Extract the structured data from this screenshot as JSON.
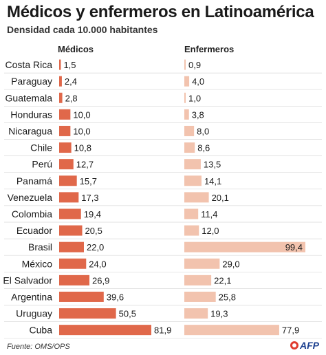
{
  "header": {
    "title": "Médicos y enfermeros en Latinoamérica",
    "subtitle": "Densidad cada 10.000 habitantes"
  },
  "footer": {
    "source": "Fuente: OMS/OPS",
    "logo_text": "AFP"
  },
  "colors": {
    "medicos_bar": "#e0684a",
    "enfermeros_bar": "#f2c3ae"
  },
  "chart_data": {
    "type": "bar",
    "orientation": "horizontal",
    "categories": [
      "Costa Rica",
      "Paraguay",
      "Guatemala",
      "Honduras",
      "Nicaragua",
      "Chile",
      "Perú",
      "Panamá",
      "Venezuela",
      "Colombia",
      "Ecuador",
      "Brasil",
      "México",
      "El Salvador",
      "Argentina",
      "Uruguay",
      "Cuba"
    ],
    "series": [
      {
        "name": "Médicos",
        "values": [
          1.5,
          2.4,
          2.8,
          10.0,
          10.0,
          10.8,
          12.7,
          15.7,
          17.3,
          19.4,
          20.5,
          22.0,
          24.0,
          26.9,
          39.6,
          50.5,
          81.9
        ],
        "labels": [
          "1,5",
          "2,4",
          "2,8",
          "10,0",
          "10,0",
          "10,8",
          "12,7",
          "15,7",
          "17,3",
          "19,4",
          "20,5",
          "22,0",
          "24,0",
          "26,9",
          "39,6",
          "50,5",
          "81,9"
        ]
      },
      {
        "name": "Enfermeros",
        "values": [
          0.9,
          4.0,
          1.0,
          3.8,
          8.0,
          8.6,
          13.5,
          14.1,
          20.1,
          11.4,
          12.0,
          99.4,
          29.0,
          22.1,
          25.8,
          19.3,
          77.9
        ],
        "labels": [
          "0,9",
          "4,0",
          "1,0",
          "3,8",
          "8,0",
          "8,6",
          "13,5",
          "14,1",
          "20,1",
          "11,4",
          "12,0",
          "99,4",
          "29,0",
          "22,1",
          "25,8",
          "19,3",
          "77,9"
        ]
      }
    ],
    "title": "Médicos y enfermeros en Latinoamérica",
    "subtitle": "Densidad cada 10.000 habitantes",
    "xlim": [
      0,
      100
    ],
    "grid": false,
    "legend": "none"
  }
}
